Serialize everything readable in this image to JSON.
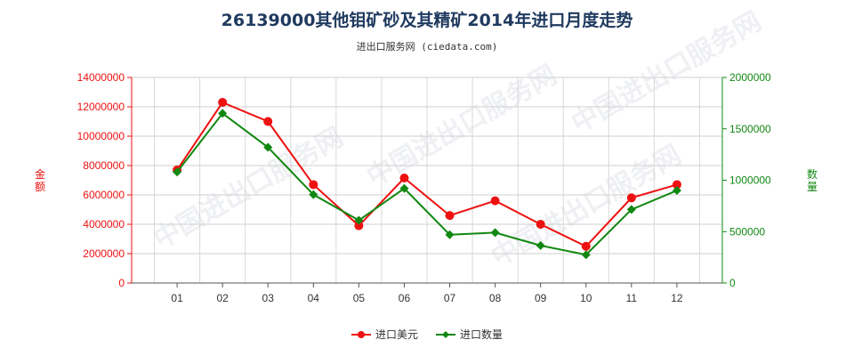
{
  "chart_data": {
    "type": "line",
    "title": "26139000其他钼矿砂及其精矿2014年进口月度走势",
    "subtitle": "进出口服务网 (ciedata.com)",
    "categories": [
      "01",
      "02",
      "03",
      "04",
      "05",
      "06",
      "07",
      "08",
      "09",
      "10",
      "11",
      "12"
    ],
    "ylabel_left": "金额",
    "ylabel_right": "数量",
    "ylim_left": [
      0,
      14000000
    ],
    "ylim_right": [
      0,
      2000000
    ],
    "yticks_left": [
      "0",
      "2000000",
      "4000000",
      "6000000",
      "8000000",
      "10000000",
      "12000000",
      "14000000"
    ],
    "yticks_right": [
      "0",
      "500000",
      "1000000",
      "1500000",
      "2000000"
    ],
    "grid": true,
    "legend_position": "bottom",
    "series": [
      {
        "name": "进口美元",
        "axis": "left",
        "color": "#ee1111",
        "values": [
          7700000,
          12300000,
          11000000,
          6700000,
          3900000,
          7150000,
          4600000,
          5600000,
          4000000,
          2500000,
          5800000,
          6700000
        ]
      },
      {
        "name": "进口数量",
        "axis": "right",
        "color": "#118811",
        "values": [
          1080000,
          1650000,
          1320000,
          860000,
          610000,
          920000,
          470000,
          490000,
          365000,
          275000,
          715000,
          900000
        ]
      }
    ],
    "left_axis_color": "#ee1111",
    "right_axis_color": "#118811",
    "watermark": "中国进出口服务网"
  }
}
